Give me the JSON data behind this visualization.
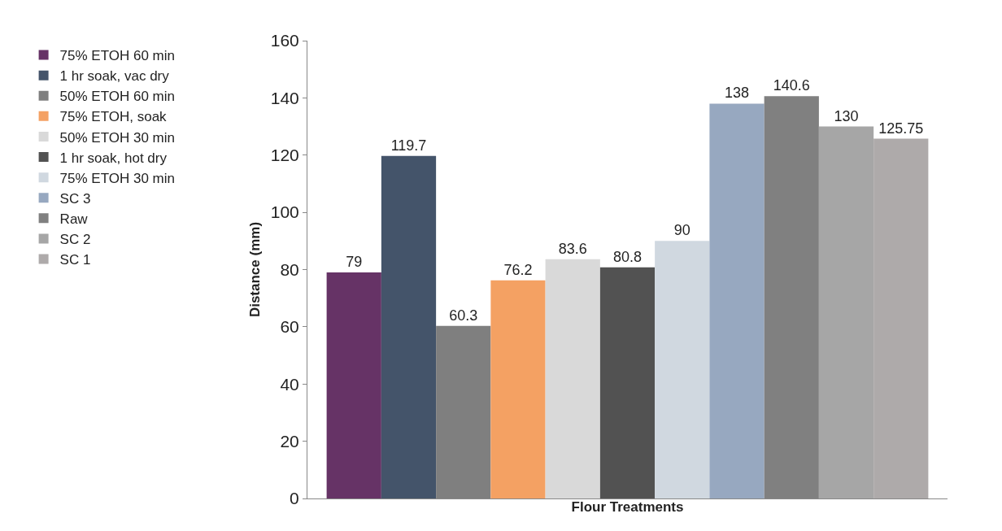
{
  "chart_data": {
    "type": "bar",
    "xlabel": "Flour Treatments",
    "ylabel": "Distance (mm)",
    "categories": [
      null
    ],
    "series": [
      {
        "name": "75% ETOH 60 min",
        "color": "#663366",
        "values": [
          79
        ]
      },
      {
        "name": "1 hr soak, vac dry",
        "color": "#44546a",
        "values": [
          119.7
        ]
      },
      {
        "name": "50% ETOH 60 min",
        "color": "#7f7f7f",
        "values": [
          60.3
        ]
      },
      {
        "name": "75% ETOH, soak",
        "color": "#f4a163",
        "values": [
          76.2
        ]
      },
      {
        "name": "50% ETOH 30 min",
        "color": "#d9d9d9",
        "values": [
          83.6
        ]
      },
      {
        "name": "1 hr soak, hot dry",
        "color": "#525252",
        "values": [
          80.8
        ]
      },
      {
        "name": "75% ETOH 30 min",
        "color": "#d0d8e0",
        "values": [
          90
        ]
      },
      {
        "name": "SC 3",
        "color": "#97a8c0",
        "values": [
          138
        ]
      },
      {
        "name": "Raw",
        "color": "#808080",
        "values": [
          140.6
        ]
      },
      {
        "name": "SC 2",
        "color": "#a6a6a6",
        "values": [
          130
        ]
      },
      {
        "name": "SC 1",
        "color": "#aeaaaa",
        "values": [
          125.75
        ]
      }
    ],
    "ylim": [
      0,
      160
    ],
    "yticks": [
      0,
      20,
      40,
      60,
      80,
      100,
      120,
      140,
      160
    ],
    "grid": false,
    "legend": "left",
    "tick_labels": "y",
    "data_labels": true
  }
}
